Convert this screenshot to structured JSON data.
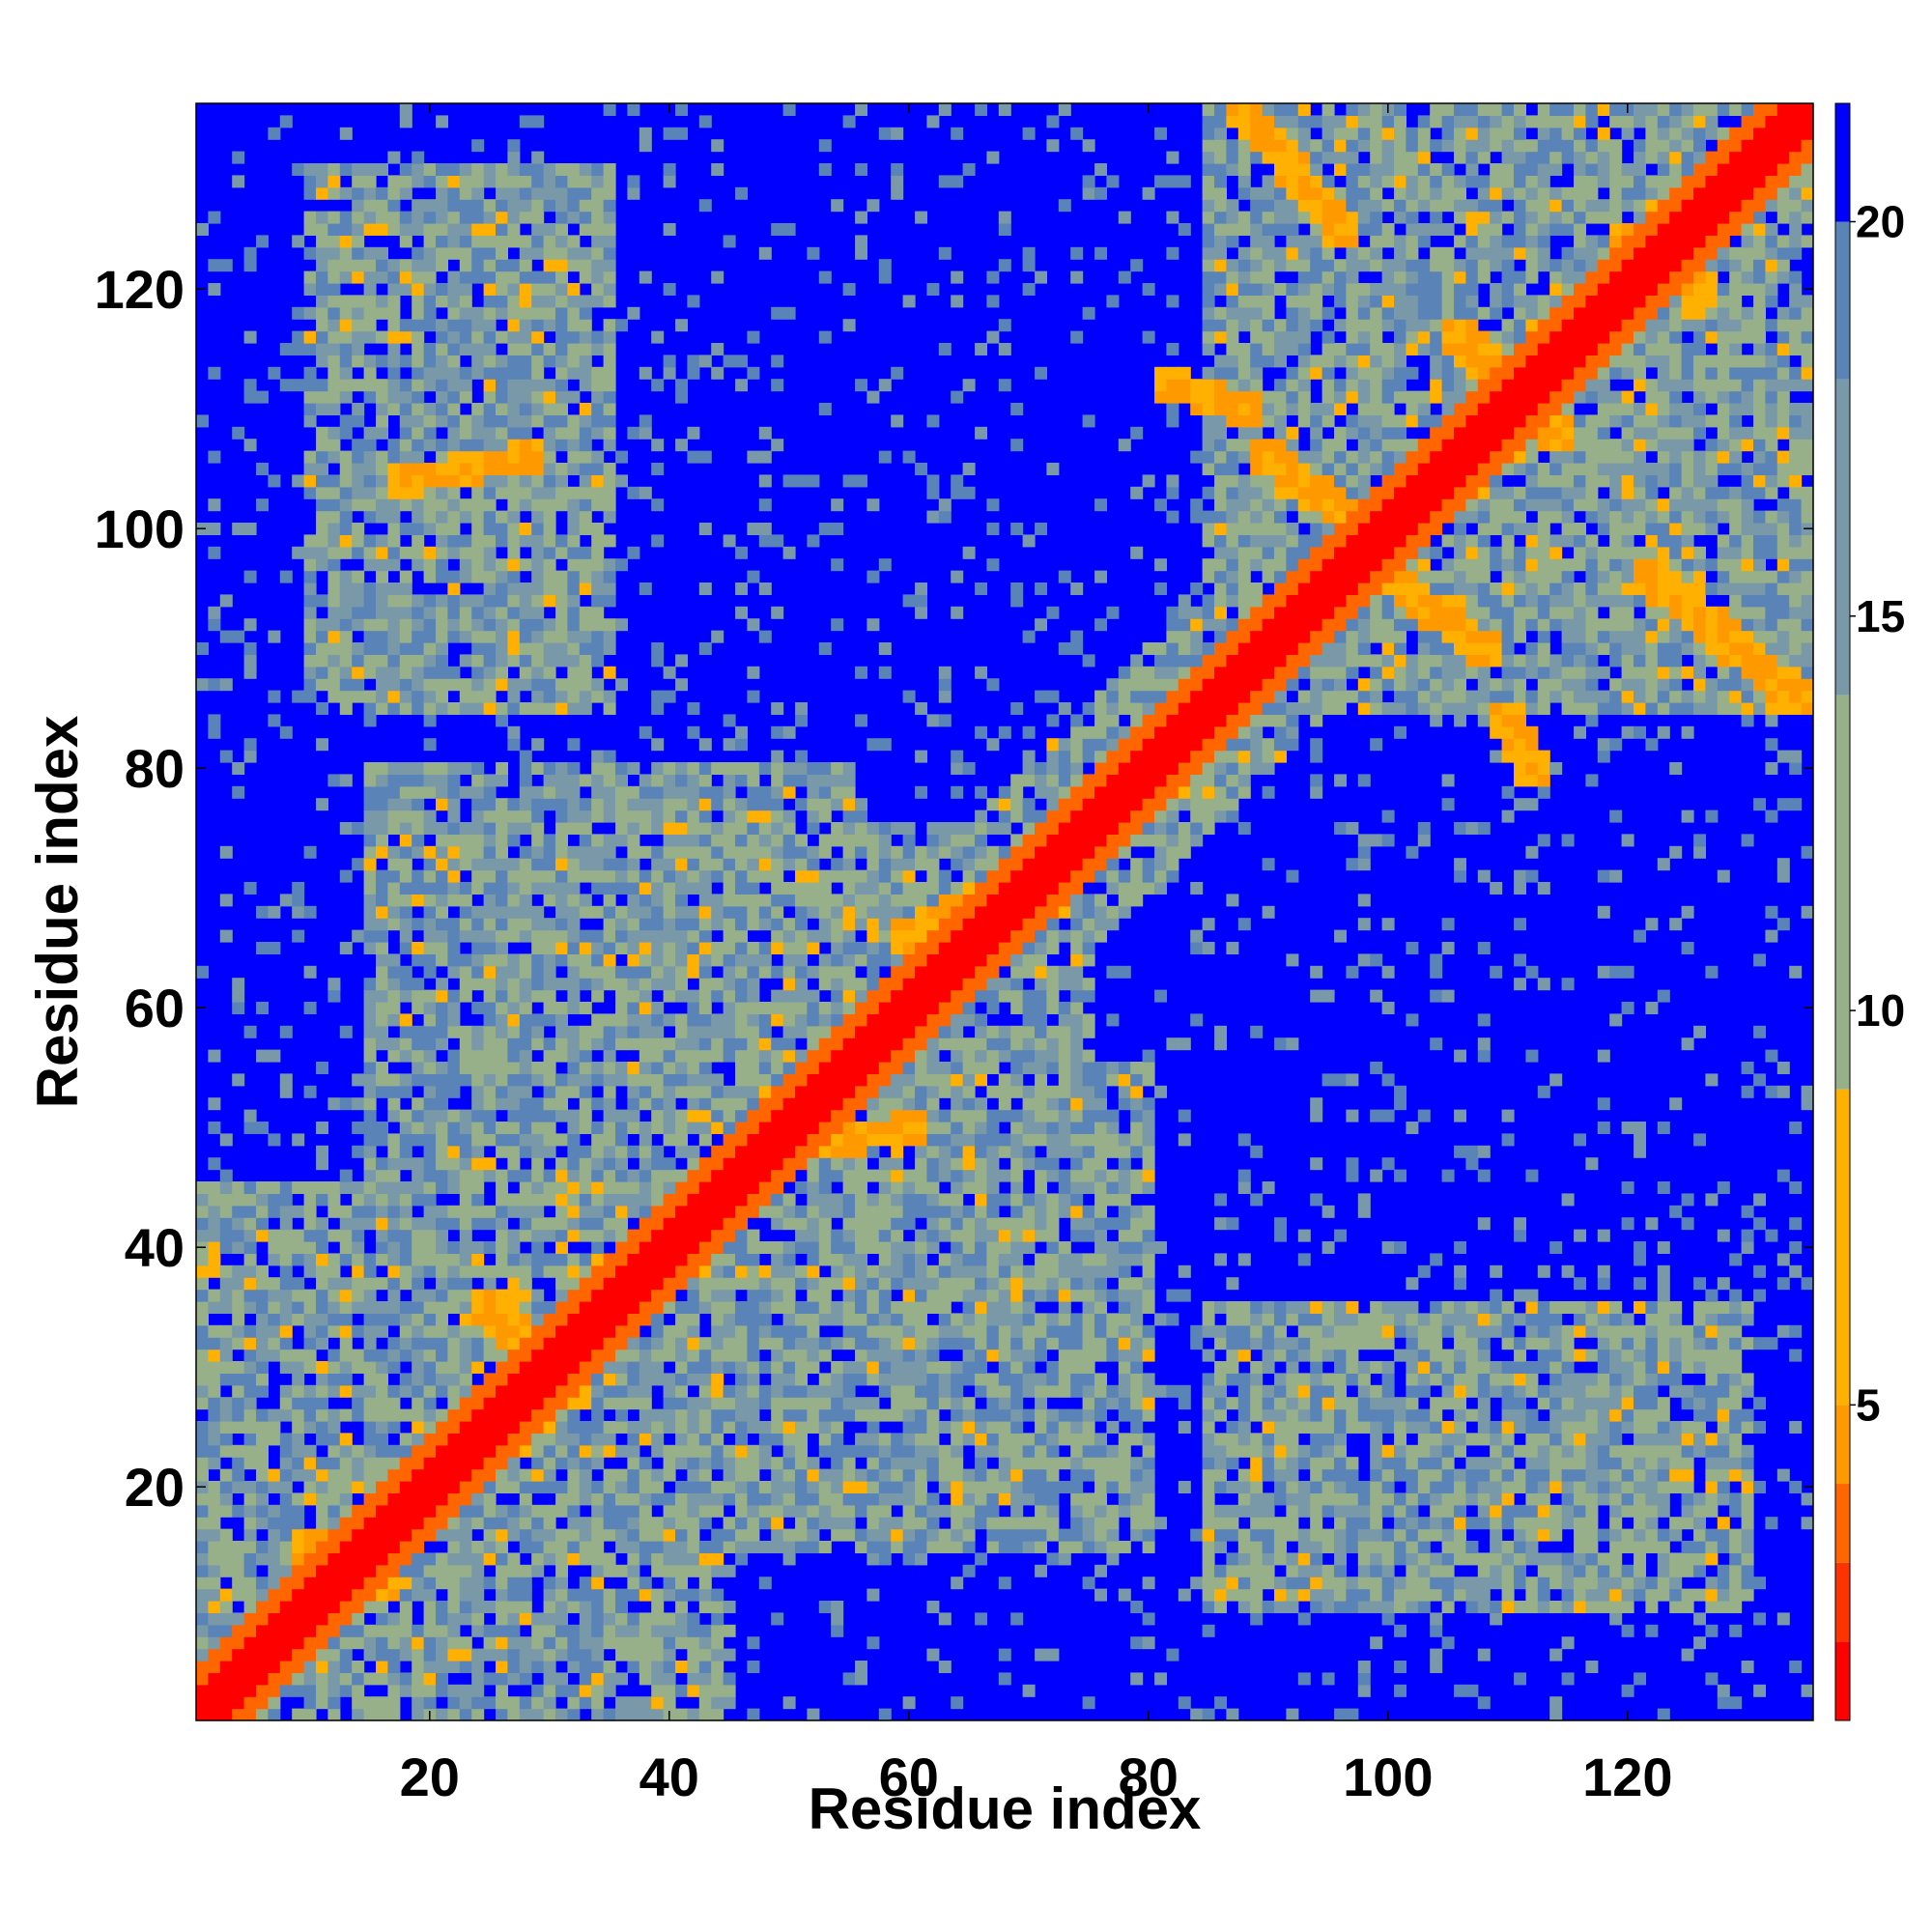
{
  "chart_data": {
    "type": "heatmap",
    "title": "",
    "xlabel": "Residue index",
    "ylabel": "Residue index",
    "n_residues": 135,
    "xlim": [
      1,
      135
    ],
    "ylim": [
      1,
      135
    ],
    "xticks": [
      "20",
      "40",
      "60",
      "80",
      "100",
      "120"
    ],
    "yticks": [
      "20",
      "40",
      "60",
      "80",
      "100",
      "120"
    ],
    "grid": false,
    "colorbar": {
      "ticks": [
        "5",
        "10",
        "15",
        "20"
      ],
      "range": [
        1,
        21.5
      ],
      "cap_value": 20,
      "colors": [
        "#ff0000",
        "#ff3300",
        "#ff6600",
        "#ff9900",
        "#ffb000",
        "#98b08a",
        "#7a99a8",
        "#5a84b8",
        "#0000ff"
      ],
      "legend_placement": "right"
    },
    "diagonal_band": {
      "red_within": 2,
      "orange_within": 4
    },
    "contact_regions": [
      {
        "x": [
          1,
          45
        ],
        "y": [
          1,
          45
        ],
        "level": "mixed"
      },
      {
        "x": [
          20,
          75
        ],
        "y": [
          40,
          75
        ],
        "level": "mixed"
      },
      {
        "x": [
          40,
          80
        ],
        "y": [
          15,
          55
        ],
        "level": "mixed"
      },
      {
        "x": [
          85,
          135
        ],
        "y": [
          85,
          135
        ],
        "level": "mixed"
      },
      {
        "x": [
          10,
          35
        ],
        "y": [
          85,
          130
        ],
        "level": "mixed"
      },
      {
        "x": [
          85,
          100
        ],
        "y": [
          15,
          35
        ],
        "level": "mixed"
      },
      {
        "x": [
          100,
          115
        ],
        "y": [
          15,
          35
        ],
        "level": "mixed"
      }
    ],
    "close_contacts": [
      {
        "x1": 88,
        "y1": 135,
        "x2": 96,
        "y2": 125
      },
      {
        "x1": 82,
        "y1": 112,
        "x2": 88,
        "y2": 110
      },
      {
        "x1": 90,
        "y1": 106,
        "x2": 98,
        "y2": 100
      },
      {
        "x1": 100,
        "y1": 96,
        "x2": 108,
        "y2": 90
      },
      {
        "x1": 106,
        "y1": 116,
        "x2": 114,
        "y2": 108
      },
      {
        "x1": 110,
        "y1": 84,
        "x2": 112,
        "y2": 80
      },
      {
        "x1": 122,
        "y1": 96,
        "x2": 134,
        "y2": 86
      },
      {
        "x1": 120,
        "y1": 124,
        "x2": 126,
        "y2": 120
      },
      {
        "x1": 18,
        "y1": 104,
        "x2": 28,
        "y2": 106
      },
      {
        "x1": 60,
        "y1": 66,
        "x2": 68,
        "y2": 70
      },
      {
        "x1": 50,
        "y1": 48,
        "x2": 60,
        "y2": 50
      },
      {
        "x1": 25,
        "y1": 35,
        "x2": 32,
        "y2": 28
      },
      {
        "x1": 10,
        "y1": 15,
        "x2": 16,
        "y2": 12
      }
    ]
  }
}
